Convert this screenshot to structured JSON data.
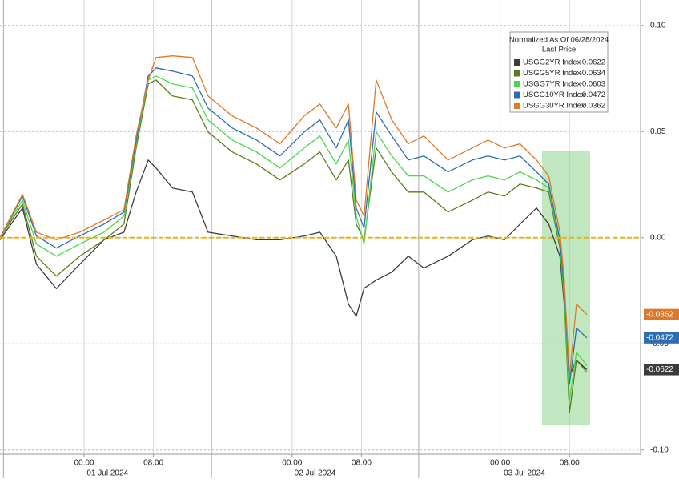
{
  "chart_data": {
    "type": "line",
    "legend_title": "Normalized As Of 06/28/2024",
    "legend_subtitle": "Last Price",
    "x": [
      -9.7,
      -7.1,
      -5.5,
      -3.2,
      -0.5,
      2.3,
      4.6,
      6.0,
      7.4,
      8.3,
      10.2,
      12.5,
      14.3,
      17.1,
      19.9,
      22.6,
      25.4,
      27.2,
      29.1,
      30.5,
      31.4,
      32.3,
      33.7,
      35.5,
      37.4,
      39.2,
      42.0,
      44.8,
      46.6,
      48.5,
      50.3,
      52.2,
      53.6,
      54.9,
      55.4,
      56.0,
      56.8,
      58.0
    ],
    "xlim": [
      -9.7,
      64.2
    ],
    "xticks": [
      {
        "value": 0,
        "label": "00:00"
      },
      {
        "value": 8,
        "label": "08:00"
      },
      {
        "value": 24,
        "label": "00:00"
      },
      {
        "value": 32,
        "label": "08:00"
      },
      {
        "value": 48,
        "label": "00:00"
      },
      {
        "value": 56,
        "label": "08:00"
      }
    ],
    "x_groups": [
      {
        "label": "01 Jul 2024",
        "start": -9.3,
        "end": 14.7
      },
      {
        "label": "02 Jul 2024",
        "start": 14.7,
        "end": 38.6
      },
      {
        "label": "03 Jul 2024",
        "start": 38.6,
        "end": 63.0
      }
    ],
    "ylim": [
      -0.102,
      0.112
    ],
    "yticks": [
      {
        "value": 0.1,
        "label": "0.10"
      },
      {
        "value": 0.05,
        "label": "0.05"
      },
      {
        "value": 0,
        "label": "0.00"
      },
      {
        "value": -0.05,
        "label": "-0.05"
      },
      {
        "value": -0.1,
        "label": "-0.10"
      }
    ],
    "grid": true,
    "zero_line_color": "#e8b320",
    "series": [
      {
        "name": "USGG2YR Index",
        "color": "#3c3c3c",
        "last_price": -0.0622,
        "tag": true,
        "values": [
          -0.001,
          0.014,
          -0.0125,
          -0.024,
          -0.0125,
          -0.001,
          0.0026,
          0.0215,
          0.0366,
          0.0328,
          0.0234,
          0.0215,
          0.0026,
          0.0008,
          -0.001,
          -0.001,
          0.0008,
          0.0026,
          -0.0087,
          -0.0313,
          -0.037,
          -0.0238,
          -0.02,
          -0.0162,
          -0.0087,
          -0.0143,
          -0.0087,
          -0.001,
          0.0008,
          -0.001,
          0.0064,
          0.014,
          0.0064,
          -0.0087,
          -0.0313,
          -0.0653,
          -0.0577,
          -0.0622
        ]
      },
      {
        "name": "USGG5YR Index",
        "color": "#5b7d1c",
        "last_price": -0.0634,
        "tag": false,
        "values": [
          0,
          0.0158,
          -0.0087,
          -0.0181,
          -0.0087,
          -0.0011,
          0.0064,
          0.0423,
          0.0725,
          0.0743,
          0.0668,
          0.0649,
          0.0498,
          0.0404,
          0.0347,
          0.0272,
          0.0347,
          0.0404,
          0.0272,
          0.0366,
          0.0064,
          -0.0011,
          0.0423,
          0.0309,
          0.0215,
          0.0215,
          0.0121,
          0.0177,
          0.0215,
          0.0196,
          0.0253,
          0.0234,
          0.0215,
          -0.0049,
          -0.0294,
          -0.0823,
          -0.0577,
          -0.0634
        ]
      },
      {
        "name": "USGG7YR Index",
        "color": "#4cd64c",
        "last_price": -0.0603,
        "tag": false,
        "values": [
          0,
          0.0177,
          -0.003,
          -0.0087,
          -0.003,
          0.0026,
          0.0102,
          0.0442,
          0.0743,
          0.0762,
          0.0725,
          0.0706,
          0.0555,
          0.046,
          0.0404,
          0.0328,
          0.0423,
          0.0479,
          0.0347,
          0.046,
          0.0102,
          -0.003,
          0.0498,
          0.0385,
          0.0291,
          0.0291,
          0.0215,
          0.0272,
          0.0291,
          0.0272,
          0.031,
          0.0272,
          0.0234,
          -0.003,
          -0.0275,
          -0.0766,
          -0.054,
          -0.0603
        ]
      },
      {
        "name": "USGG10YR Index",
        "color": "#2f6db3",
        "last_price": -0.0472,
        "tag": true,
        "values": [
          0,
          0.0196,
          0.0008,
          -0.0049,
          0.0008,
          0.0064,
          0.0121,
          0.0457,
          0.0762,
          0.08,
          0.0785,
          0.0762,
          0.0611,
          0.0517,
          0.046,
          0.0385,
          0.0498,
          0.0555,
          0.0423,
          0.0555,
          0.014,
          0.0045,
          0.0592,
          0.0479,
          0.0366,
          0.0385,
          0.031,
          0.0366,
          0.0385,
          0.0366,
          0.0385,
          0.031,
          0.0253,
          -0.0011,
          -0.0238,
          -0.0691,
          -0.0426,
          -0.0472
        ]
      },
      {
        "name": "USGG30YR Index",
        "color": "#dc7a2a",
        "last_price": -0.0362,
        "tag": true,
        "values": [
          0,
          0.0204,
          0.0026,
          -0.001,
          0.0026,
          0.0083,
          0.0132,
          0.0479,
          0.0743,
          0.0849,
          0.0857,
          0.0849,
          0.0668,
          0.0574,
          0.0517,
          0.0442,
          0.0574,
          0.063,
          0.0517,
          0.063,
          0.0177,
          0.0102,
          0.0743,
          0.0555,
          0.0442,
          0.0479,
          0.0366,
          0.0423,
          0.046,
          0.0423,
          0.0442,
          0.0366,
          0.0291,
          0.0026,
          -0.02,
          -0.0653,
          -0.0313,
          -0.0362
        ]
      }
    ]
  }
}
